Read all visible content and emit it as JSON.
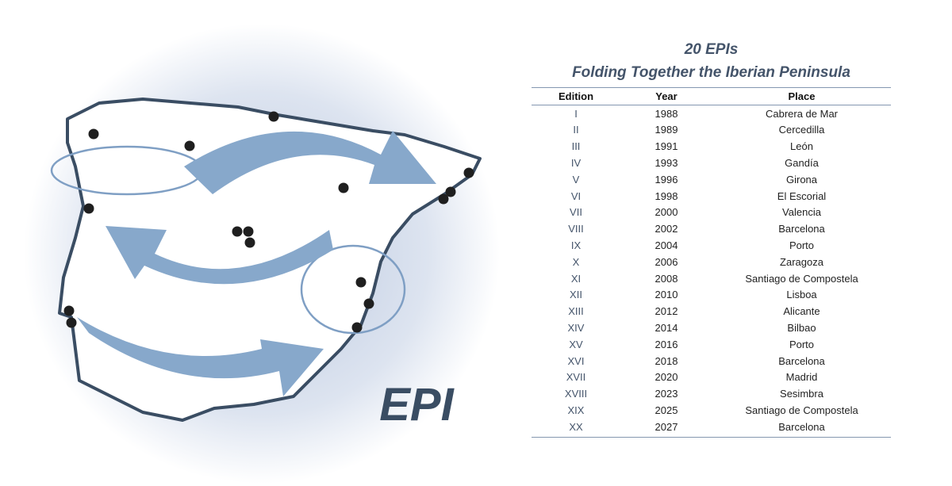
{
  "logo": {
    "text": "EPI"
  },
  "table": {
    "title_lines": [
      "20 EPIs",
      "Folding Together the Iberian Peninsula"
    ],
    "header": [
      "Edition",
      "Year",
      "Place"
    ],
    "rows": [
      [
        "I",
        "1988",
        "Cabrera de Mar"
      ],
      [
        "II",
        "1989",
        "Cercedilla"
      ],
      [
        "III",
        "1991",
        "León"
      ],
      [
        "IV",
        "1993",
        "Gandía"
      ],
      [
        "V",
        "1996",
        "Girona"
      ],
      [
        "VI",
        "1998",
        "El Escorial"
      ],
      [
        "VII",
        "2000",
        "Valencia"
      ],
      [
        "VIII",
        "2002",
        "Barcelona"
      ],
      [
        "IX",
        "2004",
        "Porto"
      ],
      [
        "X",
        "2006",
        "Zaragoza"
      ],
      [
        "XI",
        "2008",
        "Santiago de Compostela"
      ],
      [
        "XII",
        "2010",
        "Lisboa"
      ],
      [
        "XIII",
        "2012",
        "Alicante"
      ],
      [
        "XIV",
        "2014",
        "Bilbao"
      ],
      [
        "XV",
        "2016",
        "Porto"
      ],
      [
        "XVI",
        "2018",
        "Barcelona"
      ],
      [
        "XVII",
        "2020",
        "Madrid"
      ],
      [
        "XVIII",
        "2023",
        "Sesimbra"
      ],
      [
        "XIX",
        "2025",
        "Santiago de Compostela"
      ],
      [
        "XX",
        "2027",
        "Barcelona"
      ]
    ]
  }
}
